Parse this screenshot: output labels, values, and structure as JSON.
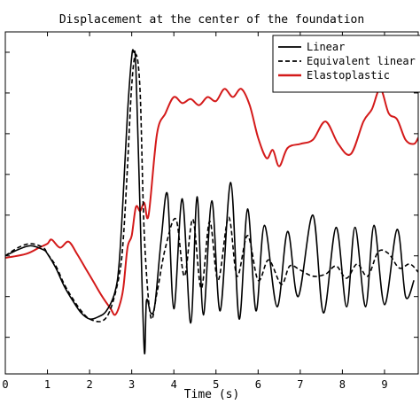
{
  "chart_data": {
    "type": "line",
    "title": "Displacement at the center of the foundation",
    "xlabel": "Time (s)",
    "ylabel": "",
    "xlim": [
      0,
      9.8
    ],
    "ylim": [
      -2.9,
      5.5
    ],
    "x_ticks": [
      "0",
      "1",
      "2",
      "3",
      "4",
      "5",
      "6",
      "7",
      "8",
      "9"
    ],
    "x_tick_values": [
      0,
      1,
      2,
      3,
      4,
      5,
      6,
      7,
      8,
      9
    ],
    "y_tick_values": [
      -2,
      -1,
      0,
      1,
      2,
      3,
      4,
      5
    ],
    "legend_position": "top-right",
    "grid": false,
    "series": [
      {
        "name": "Linear",
        "color": "#000000",
        "dash": "solid",
        "x": [
          0,
          0.3,
          0.6,
          0.9,
          1.0,
          1.2,
          1.4,
          1.6,
          1.8,
          2.0,
          2.2,
          2.4,
          2.6,
          2.7,
          2.8,
          2.9,
          3.0,
          3.05,
          3.1,
          3.2,
          3.3,
          3.35,
          3.45,
          3.55,
          3.7,
          3.85,
          4.0,
          4.2,
          4.4,
          4.55,
          4.7,
          4.9,
          5.1,
          5.35,
          5.55,
          5.75,
          5.95,
          6.15,
          6.45,
          6.7,
          6.95,
          7.3,
          7.55,
          7.85,
          8.1,
          8.3,
          8.55,
          8.75,
          9.0,
          9.3,
          9.5,
          9.7
        ],
        "y": [
          0.0,
          0.15,
          0.25,
          0.15,
          0.05,
          -0.3,
          -0.75,
          -1.1,
          -1.4,
          -1.55,
          -1.5,
          -1.35,
          -0.9,
          -0.2,
          1.5,
          3.5,
          4.9,
          5.0,
          4.6,
          1.0,
          -2.35,
          -1.1,
          -1.4,
          -1.2,
          0.4,
          1.5,
          -1.3,
          1.4,
          -1.65,
          1.45,
          -1.45,
          1.35,
          -1.35,
          1.8,
          -1.55,
          1.15,
          -1.35,
          0.75,
          -1.25,
          0.6,
          -1.0,
          1.0,
          -1.4,
          0.7,
          -1.25,
          0.7,
          -1.25,
          0.75,
          -1.2,
          0.65,
          -1.0,
          -0.6
        ]
      },
      {
        "name": "Equivalent linear",
        "color": "#000000",
        "dash": "dashed",
        "x": [
          0,
          0.3,
          0.6,
          0.9,
          1.0,
          1.2,
          1.4,
          1.6,
          1.8,
          2.0,
          2.3,
          2.5,
          2.7,
          2.8,
          2.9,
          3.0,
          3.1,
          3.2,
          3.3,
          3.45,
          3.6,
          3.8,
          4.05,
          4.25,
          4.45,
          4.65,
          4.85,
          5.05,
          5.3,
          5.5,
          5.75,
          6.0,
          6.25,
          6.55,
          6.75,
          7.0,
          7.3,
          7.6,
          7.85,
          8.1,
          8.35,
          8.6,
          8.85,
          9.1,
          9.35,
          9.6,
          9.8
        ],
        "y": [
          0.0,
          0.2,
          0.3,
          0.2,
          0.05,
          -0.25,
          -0.7,
          -1.05,
          -1.35,
          -1.55,
          -1.6,
          -1.3,
          -0.5,
          0.4,
          2.2,
          4.2,
          4.95,
          4.0,
          0.5,
          -1.5,
          -0.9,
          0.2,
          0.9,
          -0.5,
          0.9,
          -0.8,
          0.85,
          -0.6,
          0.95,
          -0.5,
          0.5,
          -0.6,
          -0.1,
          -0.7,
          -0.25,
          -0.35,
          -0.5,
          -0.45,
          -0.25,
          -0.55,
          -0.2,
          -0.5,
          0.1,
          0.05,
          -0.3,
          -0.2,
          -0.4
        ]
      },
      {
        "name": "Elastoplastic",
        "color": "#d41a1a",
        "dash": "solid",
        "x": [
          0,
          0.5,
          0.8,
          1.0,
          1.1,
          1.3,
          1.5,
          1.7,
          1.9,
          2.1,
          2.3,
          2.5,
          2.6,
          2.7,
          2.8,
          2.9,
          3.0,
          3.1,
          3.2,
          3.3,
          3.4,
          3.6,
          3.8,
          4.0,
          4.2,
          4.4,
          4.6,
          4.8,
          5.0,
          5.2,
          5.4,
          5.6,
          5.8,
          6.0,
          6.2,
          6.35,
          6.5,
          6.7,
          7.0,
          7.3,
          7.6,
          7.9,
          8.2,
          8.5,
          8.7,
          8.9,
          9.1,
          9.3,
          9.5,
          9.7,
          9.8
        ],
        "y": [
          -0.05,
          0.05,
          0.2,
          0.3,
          0.4,
          0.2,
          0.35,
          0.05,
          -0.3,
          -0.65,
          -1.0,
          -1.3,
          -1.45,
          -1.25,
          -0.8,
          0.2,
          0.5,
          1.2,
          1.1,
          1.3,
          1.0,
          3.0,
          3.5,
          3.9,
          3.75,
          3.85,
          3.7,
          3.9,
          3.8,
          4.1,
          3.9,
          4.1,
          3.7,
          2.9,
          2.4,
          2.6,
          2.2,
          2.65,
          2.75,
          2.85,
          3.3,
          2.75,
          2.5,
          3.3,
          3.6,
          4.1,
          3.5,
          3.35,
          2.85,
          2.75,
          2.9
        ]
      }
    ]
  }
}
